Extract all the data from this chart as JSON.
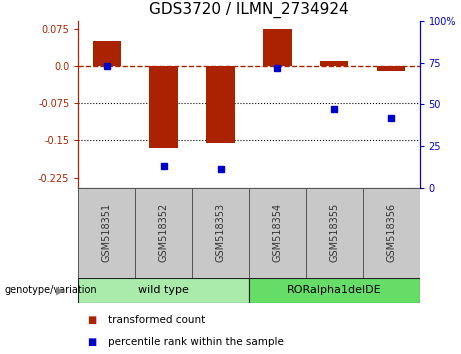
{
  "title": "GDS3720 / ILMN_2734924",
  "samples": [
    "GSM518351",
    "GSM518352",
    "GSM518353",
    "GSM518354",
    "GSM518355",
    "GSM518356"
  ],
  "bar_values": [
    0.05,
    -0.165,
    -0.155,
    0.075,
    0.01,
    -0.01
  ],
  "percentile_values": [
    73,
    13,
    11,
    72,
    47,
    42
  ],
  "ylim_left": [
    -0.245,
    0.09
  ],
  "ylim_right": [
    0,
    100
  ],
  "yticks_left": [
    0.075,
    0.0,
    -0.075,
    -0.15,
    -0.225
  ],
  "yticks_right": [
    100,
    75,
    50,
    25,
    0
  ],
  "dotted_lines": [
    -0.075,
    -0.15
  ],
  "bar_color": "#aa2200",
  "point_color": "#0000cc",
  "background_color": "#ffffff",
  "plot_bg": "#ffffff",
  "group1_label": "wild type",
  "group2_label": "RORalpha1delDE",
  "group1_indices": [
    0,
    1,
    2
  ],
  "group2_indices": [
    3,
    4,
    5
  ],
  "group1_color": "#aaeaaa",
  "group2_color": "#66dd66",
  "genotype_label": "genotype/variation",
  "legend_bar_label": "transformed count",
  "legend_point_label": "percentile rank within the sample",
  "title_fontsize": 11,
  "tick_fontsize": 7,
  "label_fontsize": 8,
  "sample_label_color": "#333333",
  "grid_color": "#bbbbbb",
  "label_area_color": "#c8c8c8"
}
